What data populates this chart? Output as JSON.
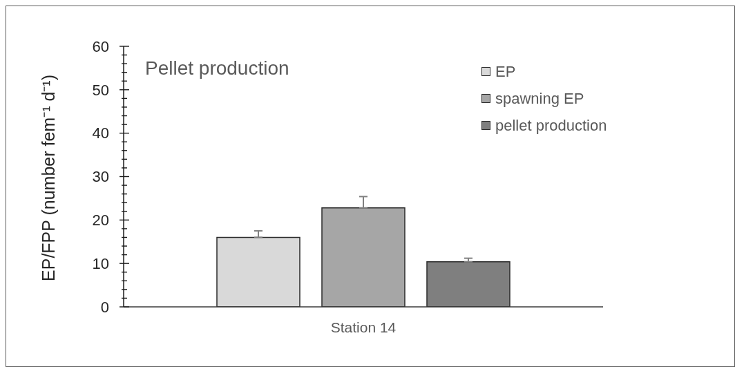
{
  "chart_data": {
    "type": "bar",
    "title": "Pellet production",
    "ylabel": "EP/FPP (number fem⁻¹ d⁻¹)",
    "categories": [
      "Station 14"
    ],
    "series": [
      {
        "name": "EP",
        "color": "#d9d9d9",
        "values": [
          16
        ],
        "errors": [
          [
            16,
            17.5
          ]
        ]
      },
      {
        "name": "spawning EP",
        "color": "#a6a6a6",
        "values": [
          22.8
        ],
        "errors": [
          [
            22.8,
            25.4
          ]
        ]
      },
      {
        "name": "pellet production",
        "color": "#7f7f7f",
        "values": [
          10.4
        ],
        "errors": [
          [
            10.4,
            11.2
          ]
        ]
      }
    ],
    "ylim": [
      0,
      60
    ],
    "yticks": [
      0,
      {
        "value": 2,
        "label": null
      },
      {
        "value": 4,
        "label": null
      },
      {
        "value": 6,
        "label": null
      },
      {
        "value": 8,
        "label": null
      },
      10,
      {
        "value": 12,
        "label": null
      },
      {
        "value": 14,
        "label": null
      },
      {
        "value": 16,
        "label": null
      },
      {
        "value": 18,
        "label": null
      },
      20,
      {
        "value": 22,
        "label": null
      },
      {
        "value": 24,
        "label": null
      },
      {
        "value": 26,
        "label": null
      },
      {
        "value": 28,
        "label": null
      },
      30,
      {
        "value": 32,
        "label": null
      },
      {
        "value": 34,
        "label": null
      },
      {
        "value": 36,
        "label": null
      },
      {
        "value": 38,
        "label": null
      },
      40,
      {
        "value": 42,
        "label": null
      },
      {
        "value": 44,
        "label": null
      },
      {
        "value": 46,
        "label": null
      },
      {
        "value": 48,
        "label": null
      },
      50,
      {
        "value": 52,
        "label": null
      },
      {
        "value": 54,
        "label": null
      },
      {
        "value": 56,
        "label": null
      },
      {
        "value": 58,
        "label": null
      },
      60
    ],
    "legend": "top right"
  }
}
